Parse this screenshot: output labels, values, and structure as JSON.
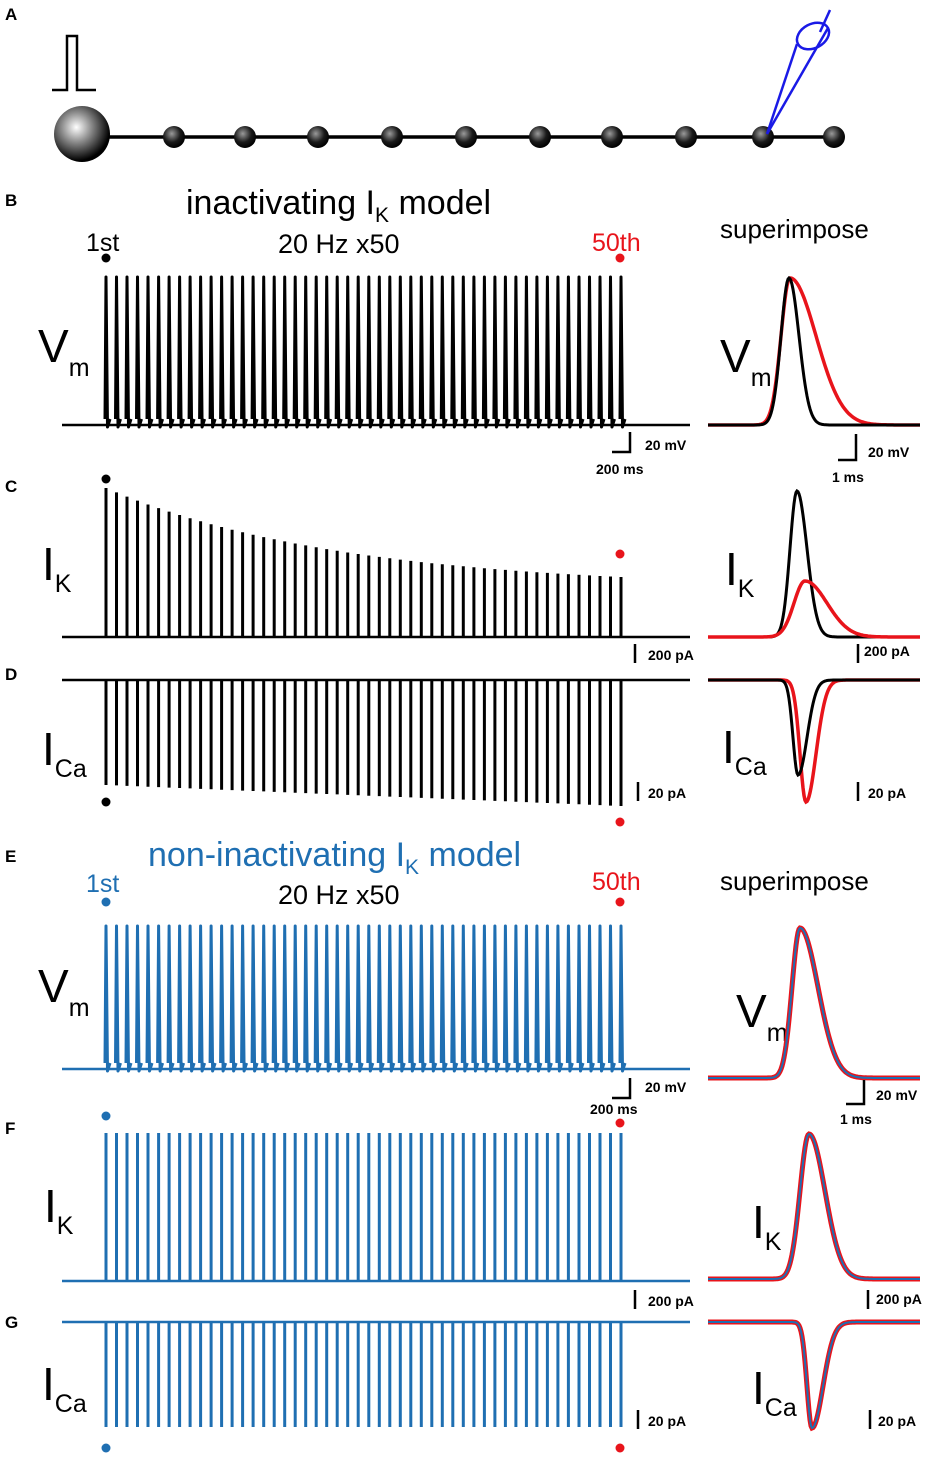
{
  "panel_labels": {
    "A": "A",
    "B": "B",
    "C": "C",
    "D": "D",
    "E": "E",
    "F": "F",
    "G": "G"
  },
  "colors": {
    "black": "#000000",
    "red": "#e8141b",
    "blue": "#1f6fb2",
    "electrode": "#1a1ae6"
  },
  "section1": {
    "title_main": "inactivating I",
    "title_sub": "K",
    "title_tail": " model",
    "stim_label": "20 Hz x50",
    "first_label": "1st",
    "last_label": "50th",
    "superimpose_label": "superimpose",
    "scales": {
      "vm_y": "20 mV",
      "vm_x": "200 ms",
      "vm_sup_y": "20 mV",
      "vm_sup_x": "1 ms",
      "ik": "200 pA",
      "ik_sup": "200 pA",
      "ica": "20 pA",
      "ica_sup": "20 pA"
    }
  },
  "section2": {
    "title_main": "non-inactivating I",
    "title_sub": "K",
    "title_tail": " model",
    "stim_label": "20 Hz x50",
    "first_label": "1st",
    "last_label": "50th",
    "superimpose_label": "superimpose",
    "scales": {
      "vm_y": "20 mV",
      "vm_x": "200 ms",
      "vm_sup_y": "20 mV",
      "vm_sup_x": "1 ms",
      "ik": "200 pA",
      "ik_sup": "200 pA",
      "ica": "20 pA",
      "ica_sup": "20 pA"
    }
  },
  "traces": {
    "vm": {
      "main": "V",
      "sub": "m"
    },
    "ik": {
      "main": "I",
      "sub": "K"
    },
    "ica": {
      "main": "I",
      "sub": "Ca"
    }
  },
  "spike_count": 50,
  "ik_inactivating_decay": {
    "first_rel": 1.0,
    "last_rel": 0.38
  },
  "ica_inactivating_growth": {
    "first_rel": 0.82,
    "last_rel": 1.0
  }
}
